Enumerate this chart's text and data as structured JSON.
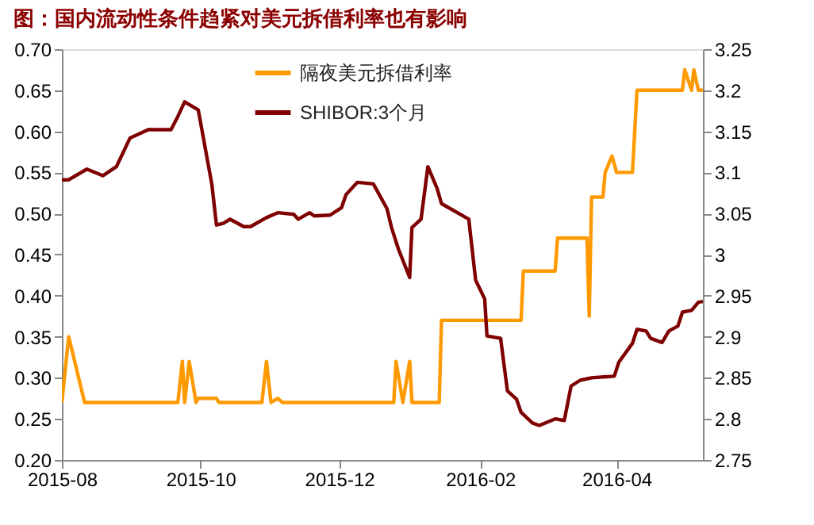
{
  "chart_data": {
    "type": "line",
    "title": "图：国内流动性条件趋紧对美元拆借利率也有影响",
    "xlim": [
      "2015-08-01",
      "2016-05-09"
    ],
    "xticks": [
      "2015-08",
      "2015-10",
      "2015-12",
      "2016-02",
      "2016-04"
    ],
    "ylim": [
      0.2,
      0.7
    ],
    "yticks": [
      {
        "value": 0.2,
        "label": "0.20"
      },
      {
        "value": 0.25,
        "label": "0.25"
      },
      {
        "value": 0.3,
        "label": "0.30"
      },
      {
        "value": 0.35,
        "label": "0.35"
      },
      {
        "value": 0.4,
        "label": "0.40"
      },
      {
        "value": 0.45,
        "label": "0.45"
      },
      {
        "value": 0.5,
        "label": "0.50"
      },
      {
        "value": 0.55,
        "label": "0.55"
      },
      {
        "value": 0.6,
        "label": "0.60"
      },
      {
        "value": 0.65,
        "label": "0.65"
      },
      {
        "value": 0.7,
        "label": "0.70"
      }
    ],
    "y2lim": [
      2.75,
      3.25
    ],
    "y2ticks": [
      2.75,
      2.8,
      2.85,
      2.9,
      2.95,
      3,
      3.05,
      3.1,
      3.15,
      3.2,
      3.25
    ],
    "grid": false,
    "legend": "top",
    "marker": "none",
    "line_style": "solid",
    "series": [
      {
        "name": "隔夜美元拆借利率",
        "color": "#ff9900",
        "x": [
          "2015-08-01",
          "2015-08-04",
          "2015-08-11",
          "2015-09-21",
          "2015-09-23",
          "2015-09-24",
          "2015-09-26",
          "2015-09-29",
          "2015-09-30",
          "2015-10-08",
          "2015-10-09",
          "2015-10-28",
          "2015-10-30",
          "2015-11-01",
          "2015-11-04",
          "2015-11-06",
          "2015-12-25",
          "2015-12-26",
          "2015-12-29",
          "2016-01-01",
          "2016-01-02",
          "2016-01-14",
          "2016-01-15",
          "2016-02-19",
          "2016-02-20",
          "2016-03-05",
          "2016-03-06",
          "2016-03-19",
          "2016-03-20",
          "2016-03-21",
          "2016-03-26",
          "2016-03-27",
          "2016-03-30",
          "2016-04-01",
          "2016-04-08",
          "2016-04-10",
          "2016-04-30",
          "2016-05-01",
          "2016-05-04",
          "2016-05-05",
          "2016-05-07",
          "2016-05-09"
        ],
        "values": [
          0.27,
          0.35,
          0.27,
          0.27,
          0.32,
          0.27,
          0.32,
          0.27,
          0.275,
          0.275,
          0.27,
          0.27,
          0.32,
          0.27,
          0.275,
          0.27,
          0.27,
          0.32,
          0.27,
          0.32,
          0.27,
          0.27,
          0.37,
          0.37,
          0.43,
          0.43,
          0.47,
          0.47,
          0.375,
          0.52,
          0.52,
          0.55,
          0.57,
          0.55,
          0.55,
          0.65,
          0.65,
          0.675,
          0.65,
          0.675,
          0.65,
          0.65
        ]
      },
      {
        "name": "SHIBOR:3个月",
        "color": "#7f0000",
        "axis": "y2",
        "x": [
          "2015-08-01",
          "2015-08-04",
          "2015-08-12",
          "2015-08-19",
          "2015-08-25",
          "2015-08-31",
          "2015-09-08",
          "2015-09-18",
          "2015-09-21",
          "2015-09-24",
          "2015-09-30",
          "2015-10-06",
          "2015-10-08",
          "2015-10-11",
          "2015-10-14",
          "2015-10-20",
          "2015-10-23",
          "2015-10-30",
          "2015-11-04",
          "2015-11-11",
          "2015-11-13",
          "2015-11-18",
          "2015-11-20",
          "2015-11-27",
          "2015-12-02",
          "2015-12-04",
          "2015-12-09",
          "2015-12-16",
          "2015-12-22",
          "2015-12-24",
          "2015-12-27",
          "2016-01-01",
          "2016-01-02",
          "2016-01-06",
          "2016-01-09",
          "2016-01-13",
          "2016-01-15",
          "2016-01-27",
          "2016-01-30",
          "2016-02-03",
          "2016-02-04",
          "2016-02-10",
          "2016-02-13",
          "2016-02-17",
          "2016-02-19",
          "2016-02-24",
          "2016-02-27",
          "2016-03-05",
          "2016-03-09",
          "2016-03-12",
          "2016-03-16",
          "2016-03-21",
          "2016-03-31",
          "2016-04-02",
          "2016-04-08",
          "2016-04-10",
          "2016-04-14",
          "2016-04-16",
          "2016-04-21",
          "2016-04-24",
          "2016-04-28",
          "2016-04-30",
          "2016-05-04",
          "2016-05-07",
          "2016-05-09"
        ],
        "values": [
          3.091,
          3.091,
          3.104,
          3.096,
          3.107,
          3.142,
          3.152,
          3.152,
          3.168,
          3.186,
          3.176,
          3.085,
          3.036,
          3.038,
          3.043,
          3.034,
          3.034,
          3.045,
          3.051,
          3.049,
          3.043,
          3.051,
          3.047,
          3.048,
          3.057,
          3.073,
          3.088,
          3.086,
          3.056,
          3.033,
          3.007,
          2.972,
          3.033,
          3.043,
          3.107,
          3.081,
          3.062,
          3.043,
          2.969,
          2.946,
          2.901,
          2.898,
          2.834,
          2.824,
          2.808,
          2.795,
          2.792,
          2.8,
          2.798,
          2.84,
          2.847,
          2.85,
          2.852,
          2.869,
          2.892,
          2.909,
          2.907,
          2.898,
          2.893,
          2.907,
          2.913,
          2.93,
          2.932,
          2.942,
          2.943
        ]
      }
    ]
  }
}
